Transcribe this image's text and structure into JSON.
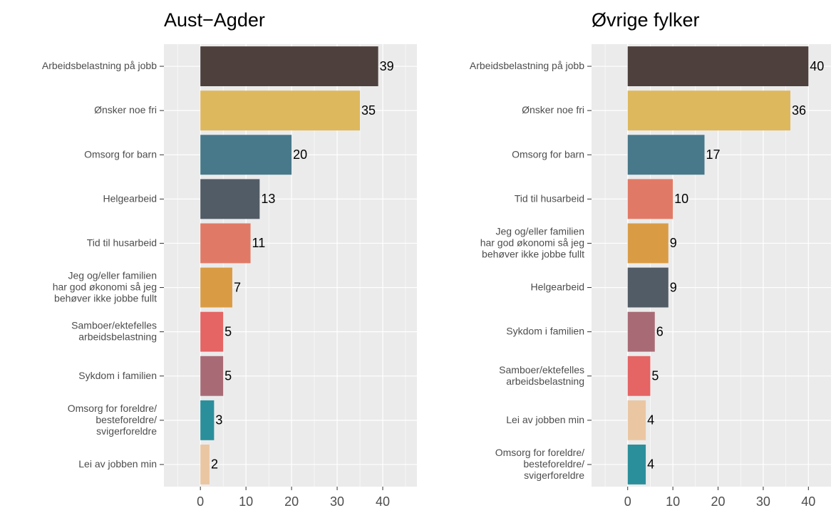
{
  "chart_data": [
    {
      "type": "bar",
      "orientation": "horizontal",
      "title": "Aust−Agder",
      "categories": [
        [
          "Arbeidsbelastning på jobb"
        ],
        [
          "Ønsker noe fri"
        ],
        [
          "Omsorg for barn"
        ],
        [
          "Helgearbeid"
        ],
        [
          "Tid til husarbeid"
        ],
        [
          "Jeg og/eller familien",
          "har god økonomi så jeg",
          "behøver ikke jobbe fullt"
        ],
        [
          "Samboer/ektefelles",
          "arbeidsbelastning"
        ],
        [
          "Sykdom i familien"
        ],
        [
          "Omsorg for foreldre/",
          "besteforeldre/",
          "svigerforeldre"
        ],
        [
          "Lei av jobben min"
        ]
      ],
      "values": [
        39,
        35,
        20,
        13,
        11,
        7,
        5,
        5,
        3,
        2
      ],
      "colors": [
        "#4d403d",
        "#deb85c",
        "#47798a",
        "#525c66",
        "#e07a66",
        "#d99c45",
        "#e56464",
        "#a86b76",
        "#2a8f9b",
        "#ebc6a3"
      ],
      "xlim": [
        -8,
        47.5
      ],
      "xticks": [
        0,
        10,
        20,
        30,
        40
      ],
      "grid": true
    },
    {
      "type": "bar",
      "orientation": "horizontal",
      "title": "Øvrige fylker",
      "categories": [
        [
          "Arbeidsbelastning på jobb"
        ],
        [
          "Ønsker noe fri"
        ],
        [
          "Omsorg for barn"
        ],
        [
          "Tid til husarbeid"
        ],
        [
          "Jeg og/eller familien",
          "har god økonomi så jeg",
          "behøver ikke jobbe fullt"
        ],
        [
          "Helgearbeid"
        ],
        [
          "Sykdom i familien"
        ],
        [
          "Samboer/ektefelles",
          "arbeidsbelastning"
        ],
        [
          "Lei av jobben min"
        ],
        [
          "Omsorg for foreldre/",
          "besteforeldre/",
          "svigerforeldre"
        ]
      ],
      "values": [
        40,
        36,
        17,
        10,
        9,
        9,
        6,
        5,
        4,
        4
      ],
      "colors": [
        "#4d403d",
        "#deb85c",
        "#47798a",
        "#e07a66",
        "#d99c45",
        "#525c66",
        "#a86b76",
        "#e56464",
        "#ebc6a3",
        "#2a8f9b"
      ],
      "xlim": [
        -8,
        45
      ],
      "xticks": [
        0,
        10,
        20,
        30,
        40
      ],
      "grid": true
    }
  ]
}
